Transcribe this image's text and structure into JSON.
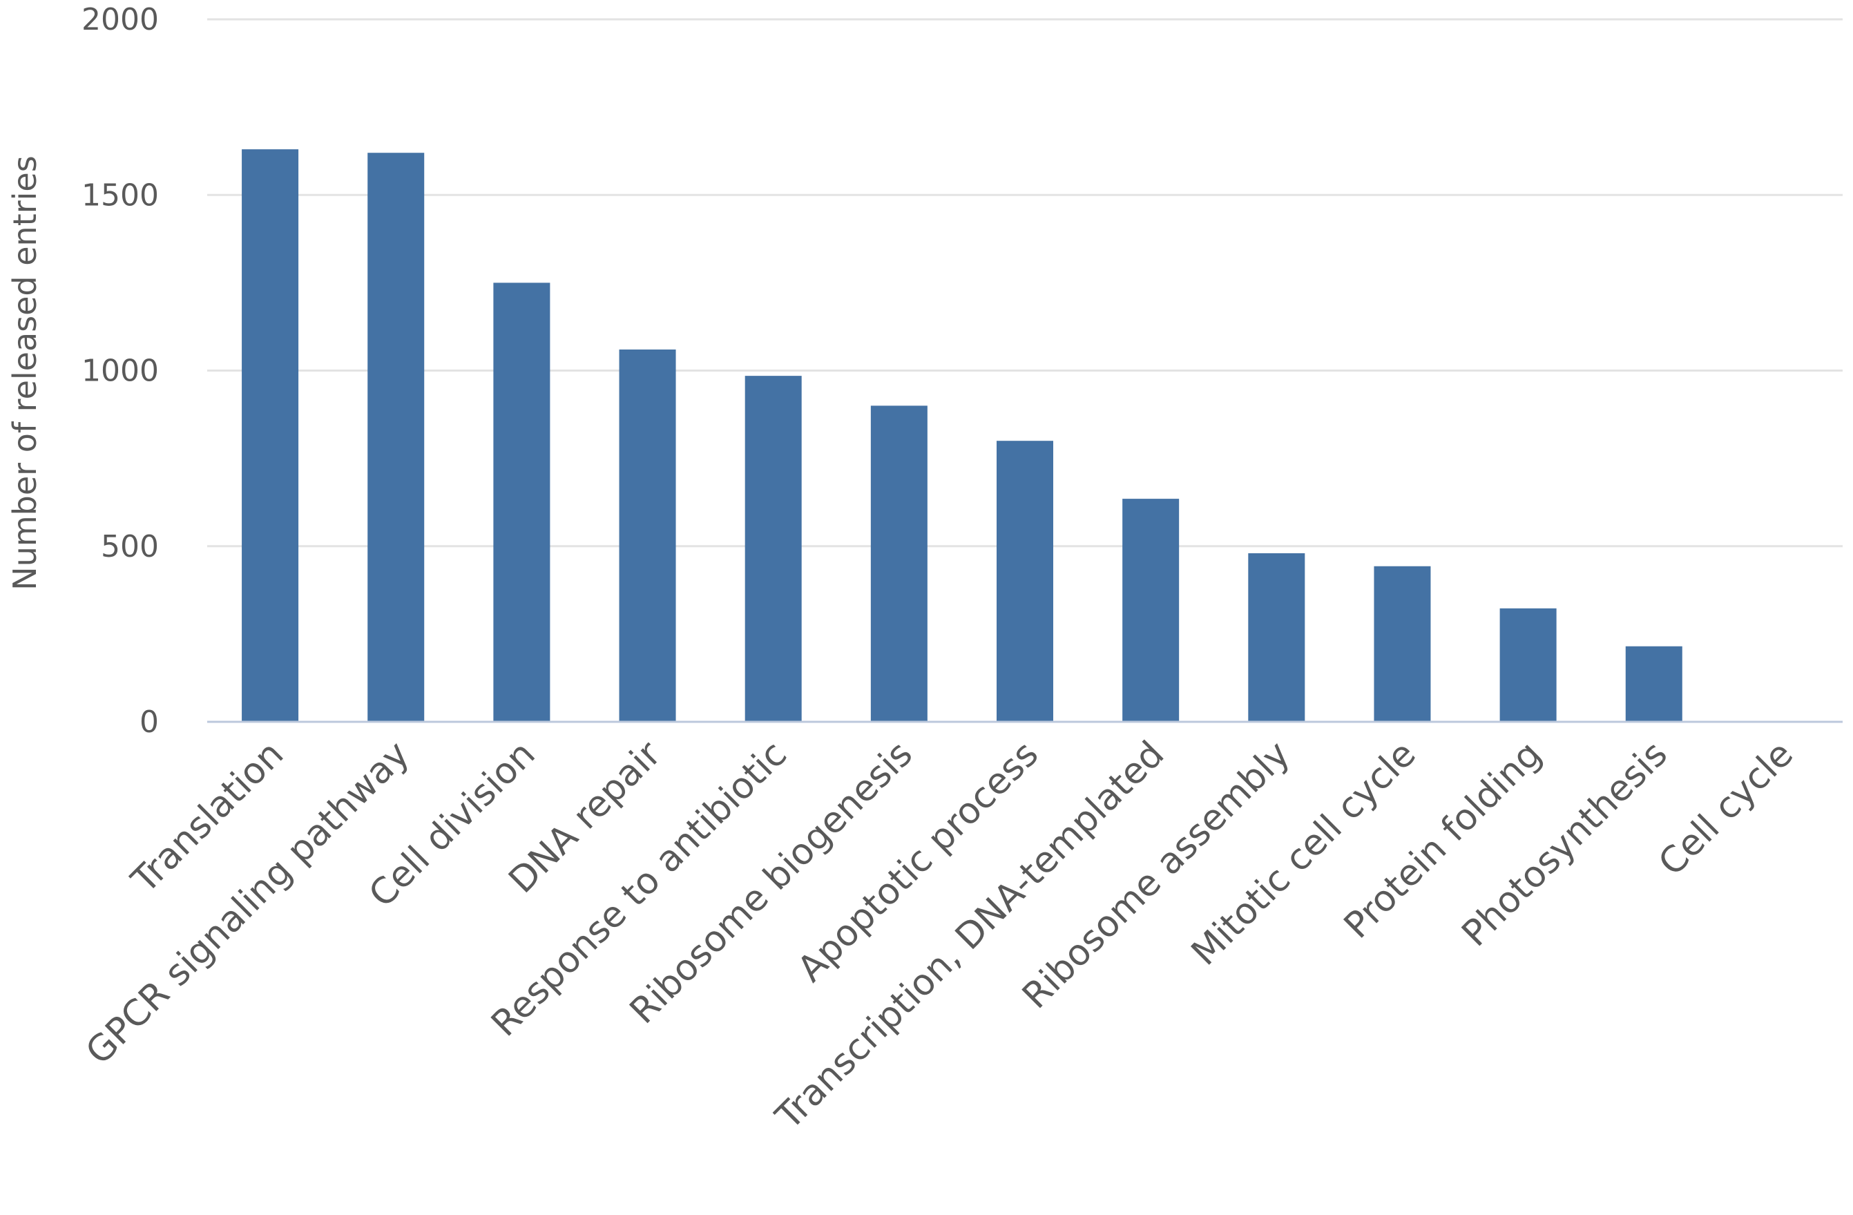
{
  "chart_data": {
    "type": "bar",
    "title": "",
    "xlabel": "",
    "ylabel": "Number of released entries",
    "ylim": [
      0,
      2000
    ],
    "yticks": [
      0,
      500,
      1000,
      1500,
      2000
    ],
    "grid": true,
    "legend": "none",
    "categories": [
      "Translation",
      "GPCR signaling pathway",
      "Cell division",
      "DNA repair",
      "Response to antibiotic",
      "Ribosome biogenesis",
      "Apoptotic process",
      "Transcription, DNA-templated",
      "Ribosome assembly",
      "Mitotic cell cycle",
      "Protein folding",
      "Photosynthesis",
      "Cell cycle"
    ],
    "values": [
      1630,
      1620,
      1250,
      1060,
      985,
      900,
      800,
      635,
      480,
      443,
      323,
      215,
      0
    ],
    "colors": {
      "bar": "#4472a4",
      "grid": "#e3e3e3",
      "axis": "#bcc8dc",
      "text": "#595959"
    }
  }
}
